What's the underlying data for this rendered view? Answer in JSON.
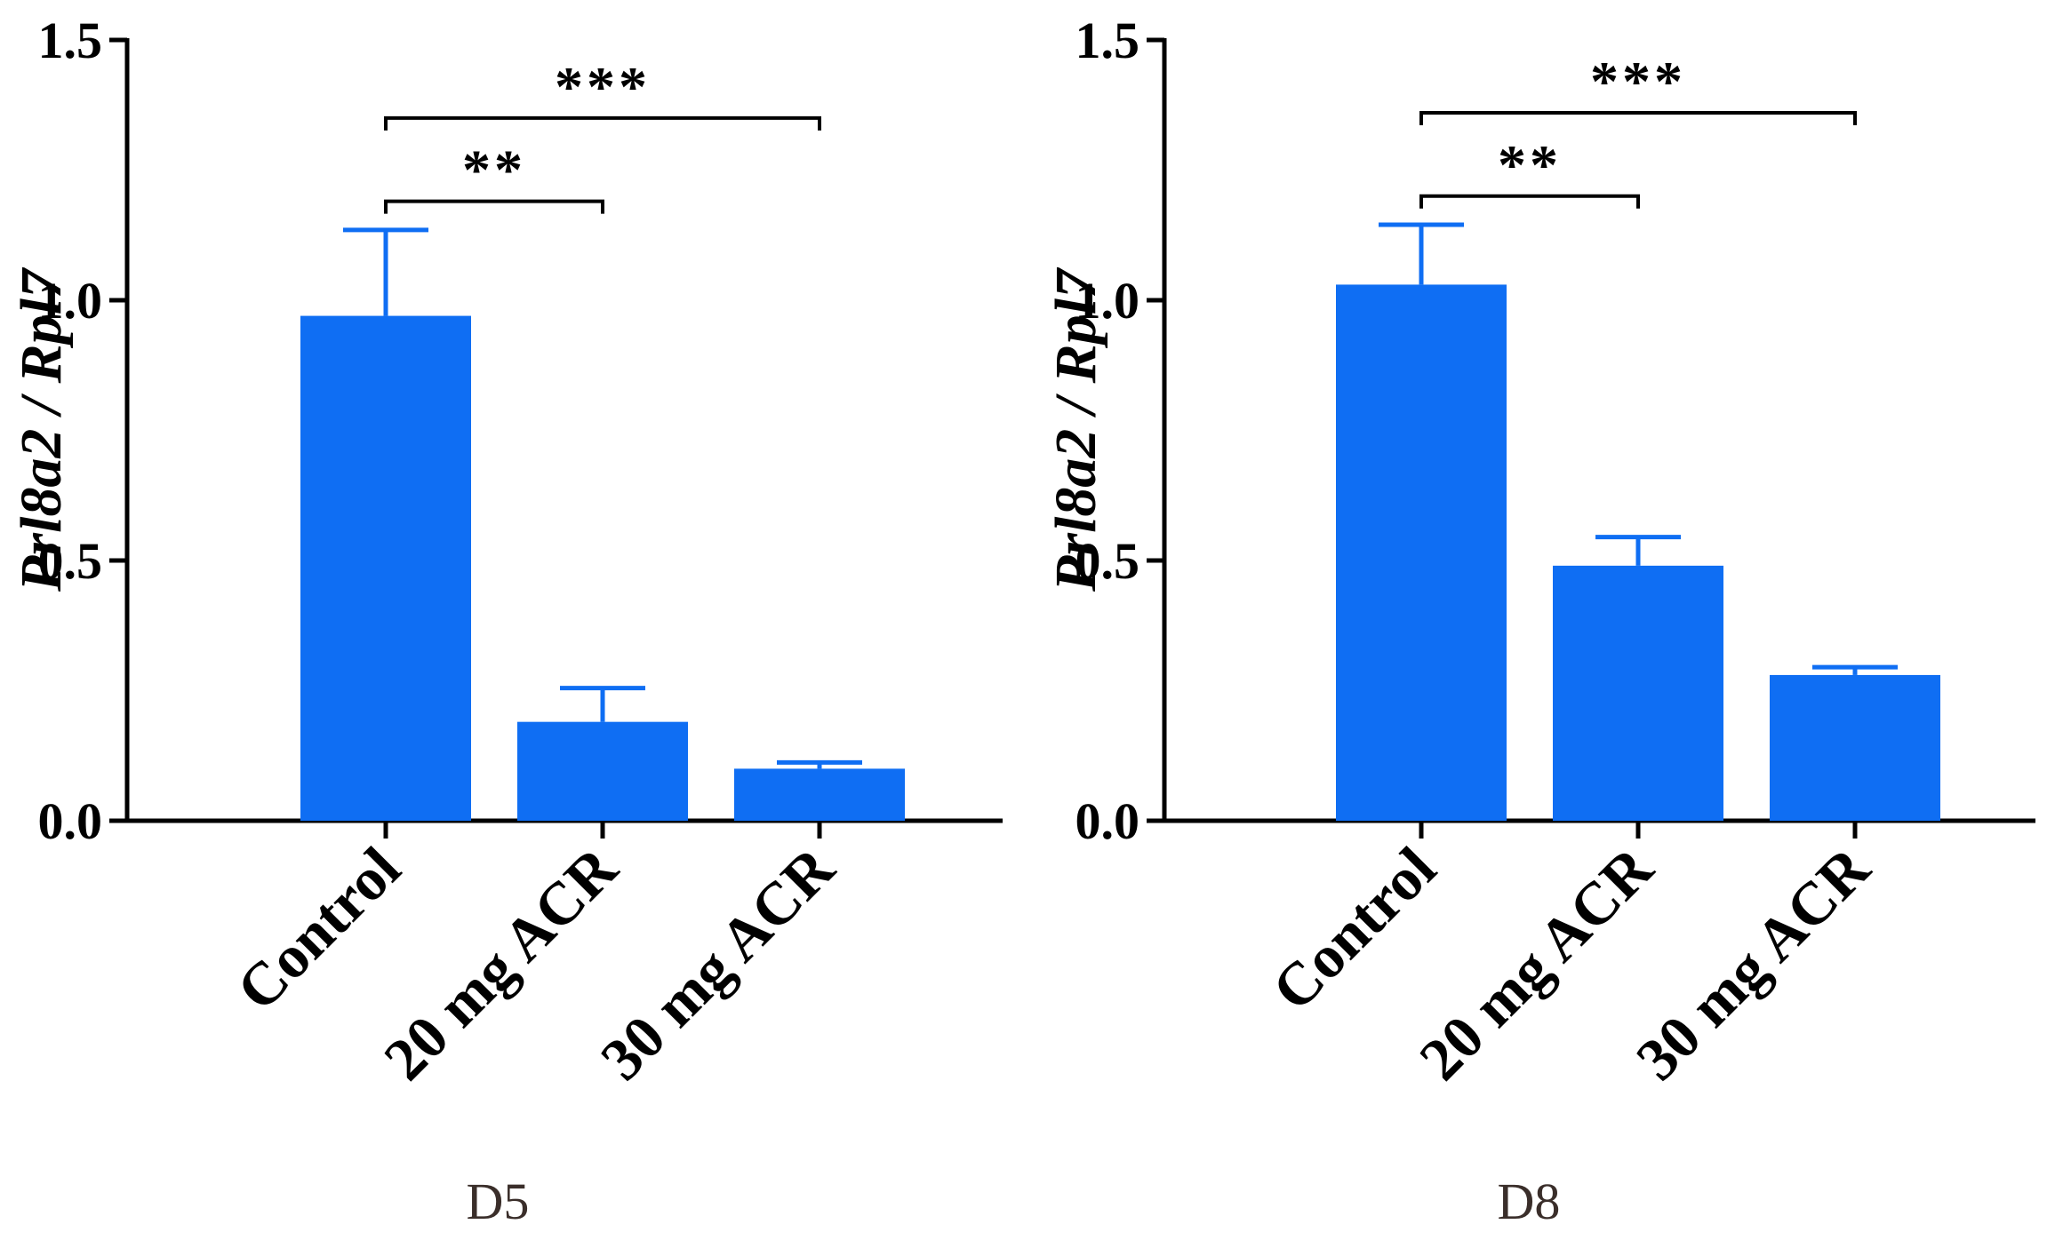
{
  "chart_data": [
    {
      "type": "bar",
      "title": "D5",
      "xlabel": "",
      "ylabel": "Prl8a2 / Rpl7",
      "ylim": [
        0,
        1.5
      ],
      "yticks": [
        "0.0",
        "0.5",
        "1.0",
        "1.5"
      ],
      "ytick_values": [
        0,
        0.5,
        1.0,
        1.5
      ],
      "categories": [
        "Control",
        "20 mg ACR",
        "30 mg ACR"
      ],
      "values": [
        0.97,
        0.19,
        0.1
      ],
      "errors": [
        0.165,
        0.065,
        0.012
      ],
      "bar_color": "#0f6ef3",
      "significance": [
        {
          "from": "Control",
          "to": "20 mg ACR",
          "label": "**",
          "y": 1.19
        },
        {
          "from": "Control",
          "to": "30 mg ACR",
          "label": "***",
          "y": 1.35
        }
      ]
    },
    {
      "type": "bar",
      "title": "D8",
      "xlabel": "",
      "ylabel": "Prl8a2 / Rpl7",
      "ylim": [
        0,
        1.5
      ],
      "yticks": [
        "0.0",
        "0.5",
        "1.0",
        "1.5"
      ],
      "ytick_values": [
        0,
        0.5,
        1.0,
        1.5
      ],
      "categories": [
        "Control",
        "20 mg ACR",
        "30 mg ACR"
      ],
      "values": [
        1.03,
        0.49,
        0.28
      ],
      "errors": [
        0.115,
        0.055,
        0.015
      ],
      "bar_color": "#0f6ef3",
      "significance": [
        {
          "from": "Control",
          "to": "20 mg ACR",
          "label": "**",
          "y": 1.2
        },
        {
          "from": "Control",
          "to": "30 mg ACR",
          "label": "***",
          "y": 1.36
        }
      ]
    }
  ]
}
